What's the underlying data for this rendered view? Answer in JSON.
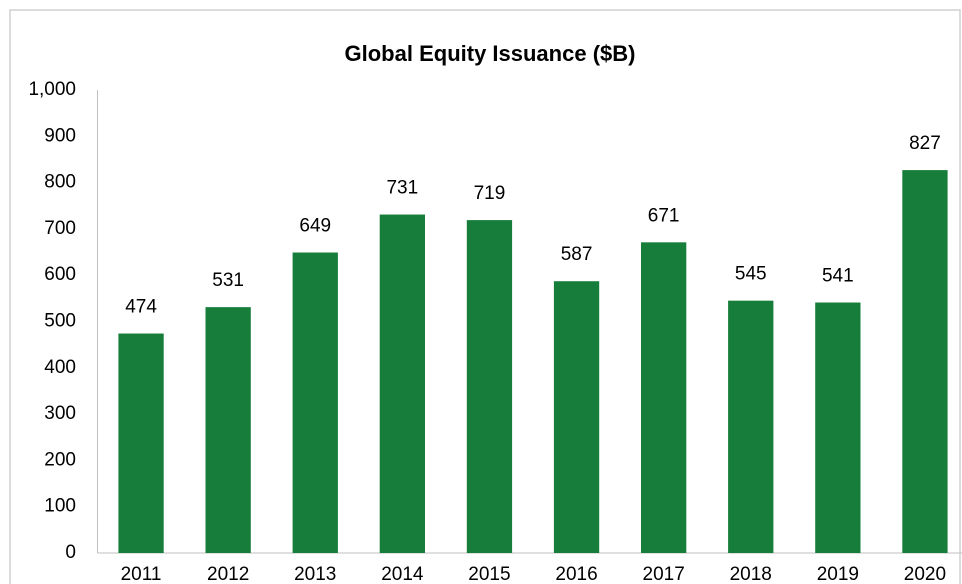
{
  "chart_data": {
    "type": "bar",
    "title": "Global Equity Issuance ($B)",
    "categories": [
      "2011",
      "2012",
      "2013",
      "2014",
      "2015",
      "2016",
      "2017",
      "2018",
      "2019",
      "2020"
    ],
    "values": [
      474,
      531,
      649,
      731,
      719,
      587,
      671,
      545,
      541,
      827
    ],
    "color": "#177d3a",
    "ylim": [
      0,
      1000
    ],
    "yticks": [
      0,
      100,
      200,
      300,
      400,
      500,
      600,
      700,
      800,
      900,
      {
        "value": 1000,
        "label": "1,000"
      }
    ],
    "grid": false
  }
}
